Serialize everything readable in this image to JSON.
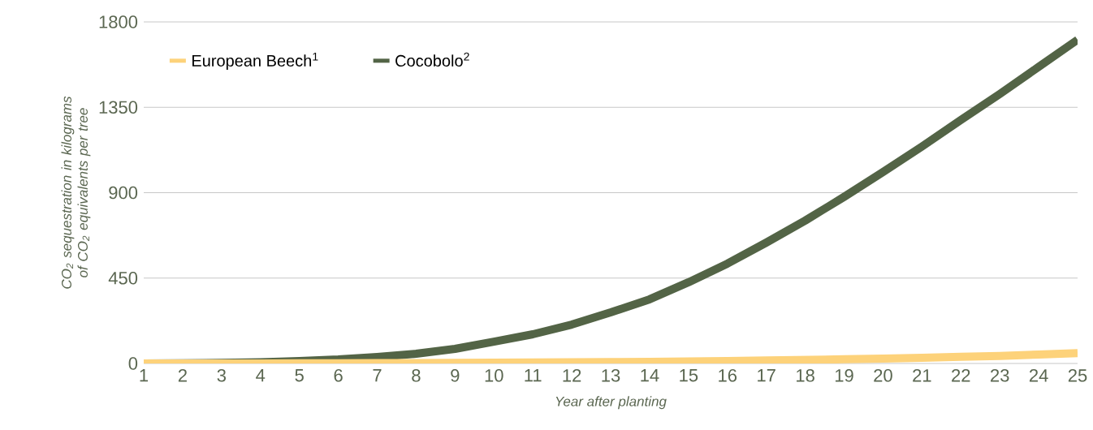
{
  "chart_data": {
    "type": "line",
    "xlabel": "Year after planting",
    "ylabel": "CO$_{2}$ sequestration in kilograms of CO$_{2}$ equivalents per tree",
    "x": [
      1,
      2,
      3,
      4,
      5,
      6,
      7,
      8,
      9,
      10,
      11,
      12,
      13,
      14,
      15,
      16,
      17,
      18,
      19,
      20,
      21,
      22,
      23,
      24,
      25
    ],
    "series": [
      {
        "name": "European Beech$^{1}$",
        "color": "#fdd27a",
        "values": [
          0,
          0,
          0,
          0,
          1,
          1,
          2,
          2,
          3,
          4,
          5,
          6,
          7,
          9,
          11,
          13,
          16,
          19,
          22,
          26,
          30,
          35,
          40,
          47,
          55
        ]
      },
      {
        "name": "Cocobolo$^{2}$",
        "color": "#536446",
        "values": [
          0,
          1,
          3,
          6,
          13,
          21,
          34,
          51,
          77,
          115,
          154,
          205,
          269,
          338,
          428,
          526,
          637,
          753,
          878,
          1009,
          1143,
          1283,
          1420,
          1563,
          1706
        ]
      }
    ],
    "xlim": [
      1,
      25
    ],
    "xticks": [
      1,
      2,
      3,
      4,
      5,
      6,
      7,
      8,
      9,
      10,
      11,
      12,
      13,
      14,
      15,
      16,
      17,
      18,
      19,
      20,
      21,
      22,
      23,
      24,
      25
    ],
    "ylim": [
      0,
      1800
    ],
    "yticks": [
      0,
      450,
      900,
      1350,
      1800
    ],
    "grid": "y",
    "legend": "top left",
    "marker": "none",
    "line_style": "solid"
  }
}
